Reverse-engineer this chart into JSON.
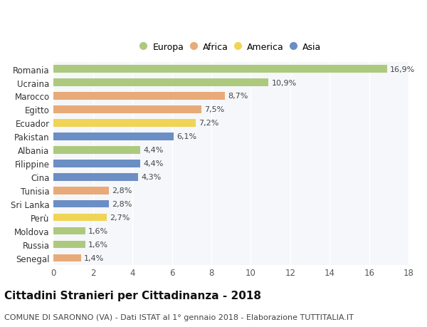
{
  "categories": [
    "Romania",
    "Ucraina",
    "Marocco",
    "Egitto",
    "Ecuador",
    "Pakistan",
    "Albania",
    "Filippine",
    "Cina",
    "Tunisia",
    "Sri Lanka",
    "Perù",
    "Moldova",
    "Russia",
    "Senegal"
  ],
  "values": [
    16.9,
    10.9,
    8.7,
    7.5,
    7.2,
    6.1,
    4.4,
    4.4,
    4.3,
    2.8,
    2.8,
    2.7,
    1.6,
    1.6,
    1.4
  ],
  "labels": [
    "16,9%",
    "10,9%",
    "8,7%",
    "7,5%",
    "7,2%",
    "6,1%",
    "4,4%",
    "4,4%",
    "4,3%",
    "2,8%",
    "2,8%",
    "2,7%",
    "1,6%",
    "1,6%",
    "1,4%"
  ],
  "continents": [
    "Europa",
    "Europa",
    "Africa",
    "Africa",
    "America",
    "Asia",
    "Europa",
    "Asia",
    "Asia",
    "Africa",
    "Asia",
    "America",
    "Europa",
    "Europa",
    "Africa"
  ],
  "continent_colors": {
    "Europa": "#adc97e",
    "Africa": "#e8aa78",
    "America": "#f0d455",
    "Asia": "#6b8ec4"
  },
  "legend_entries": [
    "Europa",
    "Africa",
    "America",
    "Asia"
  ],
  "title": "Cittadini Stranieri per Cittadinanza - 2018",
  "subtitle": "COMUNE DI SARONNO (VA) - Dati ISTAT al 1° gennaio 2018 - Elaborazione TUTTITALIA.IT",
  "xlim": [
    0,
    18
  ],
  "xticks": [
    0,
    2,
    4,
    6,
    8,
    10,
    12,
    14,
    16,
    18
  ],
  "background_color": "#ffffff",
  "plot_bg_color": "#f5f7fa",
  "grid_color": "#ffffff",
  "bar_height": 0.55,
  "title_fontsize": 11,
  "subtitle_fontsize": 8,
  "label_fontsize": 8,
  "ytick_fontsize": 8.5,
  "xtick_fontsize": 8.5,
  "legend_fontsize": 9
}
